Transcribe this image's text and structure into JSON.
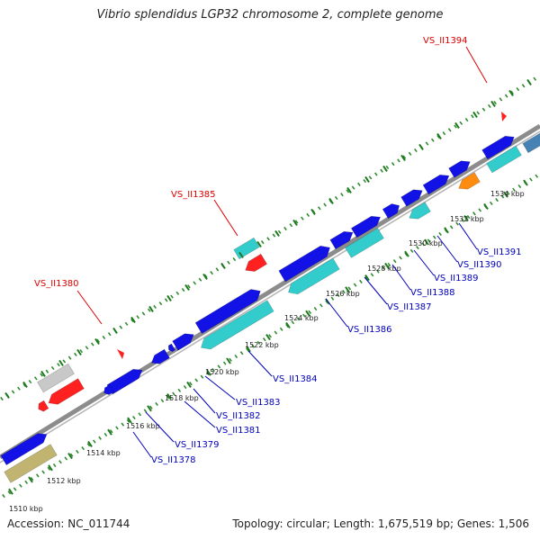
{
  "title": "Vibrio splendidus LGP32 chromosome 2, complete genome",
  "footer": {
    "accession": "Accession: NC_011744",
    "summary": "Topology: circular; Length: 1,675,519 bp; Genes: 1,506"
  },
  "colors": {
    "background": "#ffffff",
    "backbone": "#8c8c8c",
    "forward_cds": "#1212e6",
    "reverse_cds": "#33cccc",
    "rrna": "#ff2020",
    "trna": "#c8c8c8",
    "misc_feature": "#c0b470",
    "orange_feature": "#ff8c10",
    "steelblue_feature": "#4682b4",
    "gc_ticks": "#2e8b2e",
    "red_label": "#dd0000",
    "blue_label": "#0000bb"
  },
  "scale_labels": [
    "1510 kbp",
    "1512 kbp",
    "1514 kbp",
    "1516 kbp",
    "1518 kbp",
    "1520 kbp",
    "1522 kbp",
    "1524 kbp",
    "1526 kbp",
    "1528 kbp",
    "1530 kbp",
    "1532 kbp",
    "1534 kbp"
  ],
  "red_labels": [
    "VS_II1380",
    "VS_II1385",
    "VS_II1394"
  ],
  "blue_labels": [
    "VS_II1378",
    "VS_II1379",
    "VS_II1381",
    "VS_II1382",
    "VS_II1383",
    "VS_II1384",
    "VS_II1386",
    "VS_II1387",
    "VS_II1388",
    "VS_II1389",
    "VS_II1390",
    "VS_II1391"
  ]
}
